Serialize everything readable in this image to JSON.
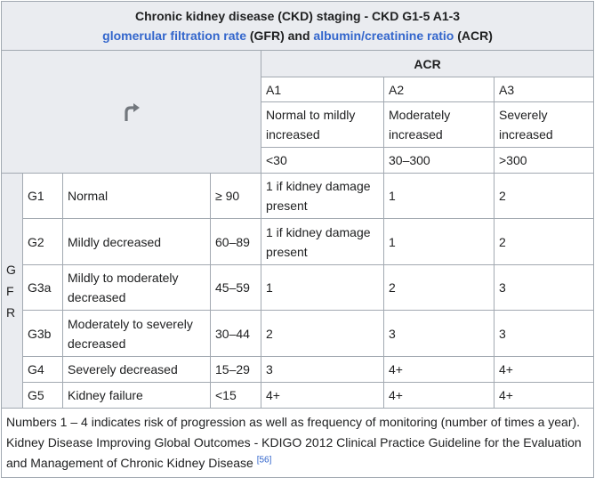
{
  "caption": {
    "line1": "Chronic kidney disease (CKD) staging - CKD G1-5 A1-3",
    "link_gfr": "glomerular filtration rate",
    "gfr_abbr": " (GFR) and ",
    "link_acr": "albumin/creatinine ratio",
    "acr_abbr": " (ACR)"
  },
  "corner_icon": "redirect-arrow-icon",
  "acr_header": "ACR",
  "acr_columns": [
    {
      "code": "A1",
      "desc": "Normal to mildly increased",
      "range": "<30"
    },
    {
      "code": "A2",
      "desc": "Moderately increased",
      "range": "30–300"
    },
    {
      "code": "A3",
      "desc": "Severely increased",
      "range": ">300"
    }
  ],
  "gfr_label_letters": [
    "G",
    "F",
    "R"
  ],
  "rows": [
    {
      "stage": "G1",
      "desc": "Normal",
      "gfr": "≥ 90",
      "a1": "1 if kidney damage present",
      "a2": "1",
      "a3": "2"
    },
    {
      "stage": "G2",
      "desc": "Mildly decreased",
      "gfr": "60–89",
      "a1": "1 if kidney damage present",
      "a2": "1",
      "a3": "2"
    },
    {
      "stage": "G3a",
      "desc": "Mildly to moderately decreased",
      "gfr": "45–59",
      "a1": "1",
      "a2": "2",
      "a3": "3"
    },
    {
      "stage": "G3b",
      "desc": "Moderately to severely decreased",
      "gfr": "30–44",
      "a1": "2",
      "a2": "3",
      "a3": "3"
    },
    {
      "stage": "G4",
      "desc": "Severely decreased",
      "gfr": "15–29",
      "a1": "3",
      "a2": "4+",
      "a3": "4+"
    },
    {
      "stage": "G5",
      "desc": "Kidney failure",
      "gfr": "<15",
      "a1": "4+",
      "a2": "4+",
      "a3": "4+"
    }
  ],
  "footer": {
    "note": "Numbers 1 – 4 indicates risk of progression as well as frequency of monitoring (number of times a year).",
    "source": "Kidney Disease Improving Global Outcomes - KDIGO 2012 Clinical Practice Guideline for the Evaluation and Management of Chronic Kidney Disease ",
    "ref": "[56]"
  },
  "colors": {
    "header_bg": "#eaecf0",
    "border": "#a2a9b1",
    "link": "#3366cc",
    "text": "#202122"
  }
}
